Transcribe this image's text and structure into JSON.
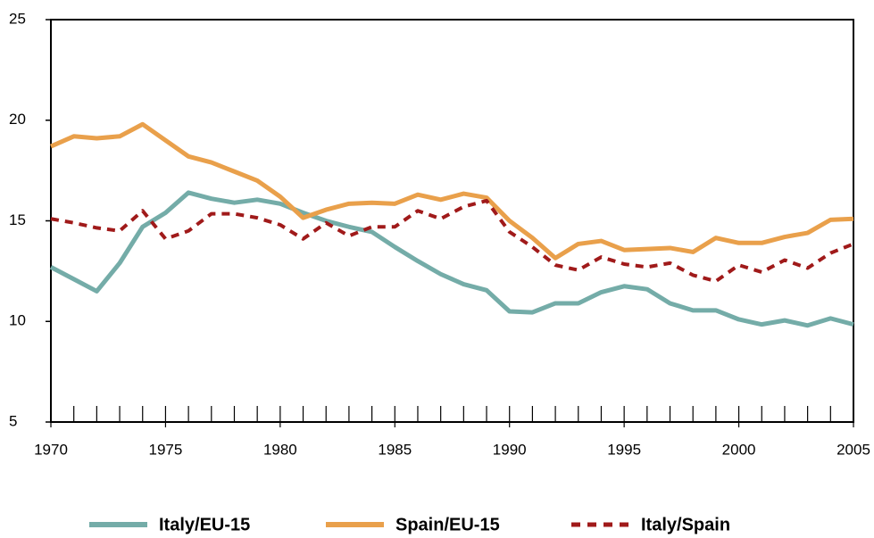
{
  "chart_data": {
    "type": "line",
    "x": [
      1970,
      1971,
      1972,
      1973,
      1974,
      1975,
      1976,
      1977,
      1978,
      1979,
      1980,
      1981,
      1982,
      1983,
      1984,
      1985,
      1986,
      1987,
      1988,
      1989,
      1990,
      1991,
      1992,
      1993,
      1994,
      1995,
      1996,
      1997,
      1998,
      1999,
      2000,
      2001,
      2002,
      2003,
      2004,
      2005
    ],
    "series": [
      {
        "name": "Italy/EU-15",
        "color": "#74aca8",
        "dash": false,
        "values": [
          12.7,
          12.1,
          11.5,
          12.9,
          14.7,
          15.4,
          16.4,
          16.1,
          15.9,
          16.05,
          15.85,
          15.4,
          15.0,
          14.7,
          14.45,
          13.7,
          13.0,
          12.35,
          11.85,
          11.55,
          10.5,
          10.45,
          10.9,
          10.9,
          11.45,
          11.75,
          11.6,
          10.9,
          10.55,
          10.55,
          10.1,
          9.85,
          10.05,
          9.8,
          10.15,
          9.85
        ]
      },
      {
        "name": "Spain/EU-15",
        "color": "#e9a04b",
        "dash": false,
        "values": [
          18.7,
          19.2,
          19.1,
          19.2,
          19.8,
          19.0,
          18.2,
          17.9,
          17.45,
          17.0,
          16.2,
          15.15,
          15.55,
          15.85,
          15.9,
          15.85,
          16.3,
          16.05,
          16.35,
          16.15,
          15.0,
          14.15,
          13.15,
          13.85,
          14.0,
          13.55,
          13.6,
          13.65,
          13.45,
          14.15,
          13.9,
          13.9,
          14.2,
          14.4,
          15.05,
          15.1
        ]
      },
      {
        "name": "Italy/Spain",
        "color": "#a01a1a",
        "dash": true,
        "values": [
          15.1,
          14.9,
          14.65,
          14.5,
          15.5,
          14.1,
          14.5,
          15.35,
          15.35,
          15.15,
          14.8,
          14.1,
          14.9,
          14.25,
          14.7,
          14.7,
          15.5,
          15.1,
          15.7,
          16.0,
          14.45,
          13.7,
          12.8,
          12.55,
          13.2,
          12.85,
          12.7,
          12.9,
          12.3,
          12.0,
          12.8,
          12.45,
          13.05,
          12.65,
          13.4,
          13.85
        ]
      }
    ],
    "xlim": [
      1970,
      2005
    ],
    "xticks": [
      1970,
      1975,
      1980,
      1985,
      1990,
      1995,
      2000,
      2005
    ],
    "ylim": [
      5,
      25
    ],
    "yticks": [
      5,
      10,
      15,
      20,
      25
    ],
    "grid": false,
    "legend": "bottom"
  }
}
